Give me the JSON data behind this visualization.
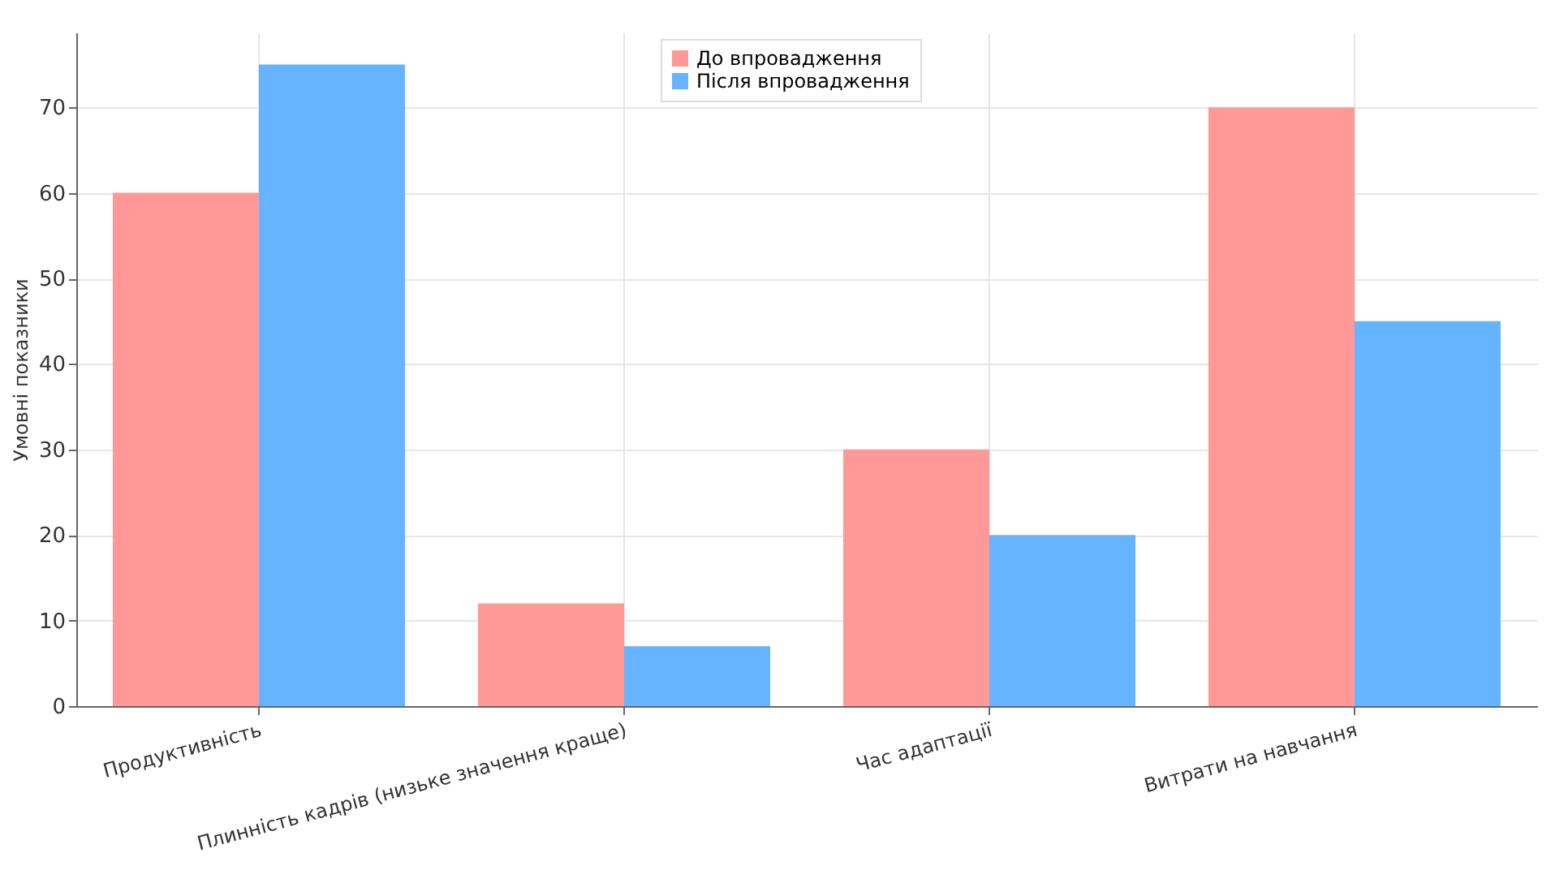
{
  "chart_data": {
    "type": "bar",
    "ylabel": "Умовні показники",
    "categories": [
      "Продуктивність",
      "Плинність кадрів (низьке значення краще)",
      "Час адаптації",
      "Витрати на навчання"
    ],
    "series": [
      {
        "name": "До впровадження",
        "color": "#ff9896",
        "values": [
          60,
          12,
          30,
          70
        ]
      },
      {
        "name": "Після впровадження",
        "color": "#66b3ff",
        "values": [
          75,
          7,
          20,
          45
        ]
      }
    ],
    "ylim": [
      0,
      78.75
    ],
    "yticks": [
      0,
      10,
      20,
      30,
      40,
      50,
      60,
      70
    ],
    "grid": true,
    "legend": "top"
  }
}
